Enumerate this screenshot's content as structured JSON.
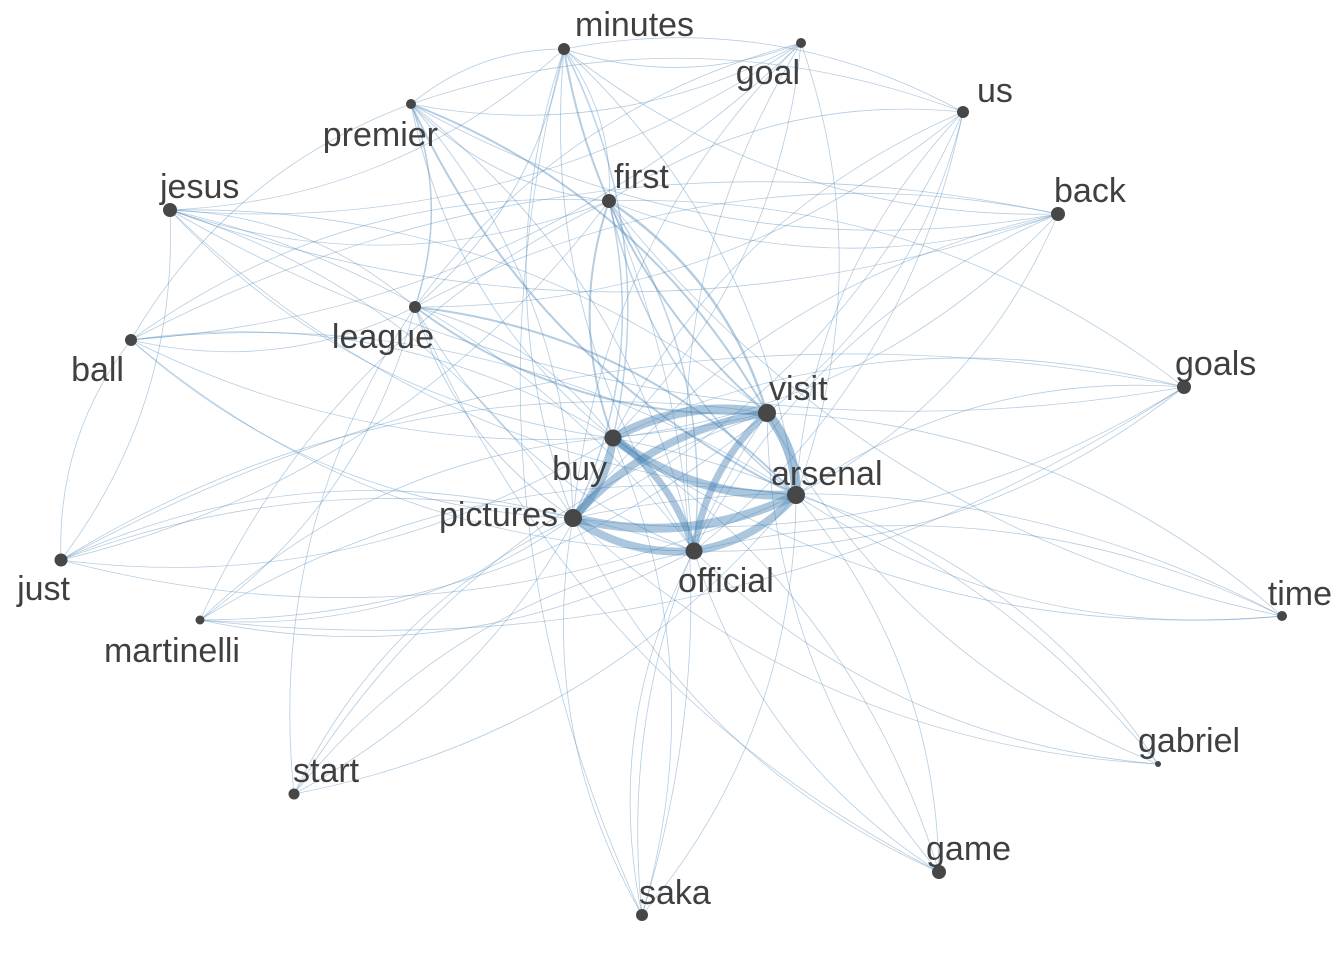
{
  "colors": {
    "edge": "#4682b4",
    "node": "#474747",
    "label": "#404040",
    "background": "#ffffff"
  },
  "nodes": [
    {
      "id": "minutes",
      "label": "minutes"
    },
    {
      "id": "goal",
      "label": "goal"
    },
    {
      "id": "us",
      "label": "us"
    },
    {
      "id": "premier",
      "label": "premier"
    },
    {
      "id": "jesus",
      "label": "jesus"
    },
    {
      "id": "first",
      "label": "first"
    },
    {
      "id": "back",
      "label": "back"
    },
    {
      "id": "league",
      "label": "league"
    },
    {
      "id": "ball",
      "label": "ball"
    },
    {
      "id": "goals",
      "label": "goals"
    },
    {
      "id": "visit",
      "label": "visit"
    },
    {
      "id": "buy",
      "label": "buy"
    },
    {
      "id": "arsenal",
      "label": "arsenal"
    },
    {
      "id": "pictures",
      "label": "pictures"
    },
    {
      "id": "official",
      "label": "official"
    },
    {
      "id": "just",
      "label": "just"
    },
    {
      "id": "time",
      "label": "time"
    },
    {
      "id": "martinelli",
      "label": "martinelli"
    },
    {
      "id": "gabriel",
      "label": "gabriel"
    },
    {
      "id": "start",
      "label": "start"
    },
    {
      "id": "game",
      "label": "game"
    },
    {
      "id": "saka",
      "label": "saka"
    }
  ]
}
